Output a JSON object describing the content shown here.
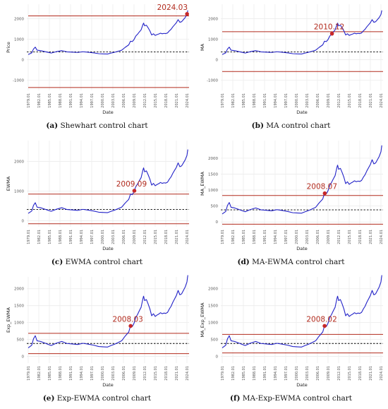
{
  "chart_data": [
    {
      "type": "line",
      "subfigure_label": "(a)",
      "caption": "Shewhart control chart",
      "xlabel": "Date",
      "ylabel": "Price",
      "ylim": [
        -1500,
        2700
      ],
      "yticks": [
        -1000,
        0,
        1000,
        2000
      ],
      "xticks": [
        "1979.01",
        "1982.01",
        "1985.01",
        "1988.01",
        "1991.01",
        "1994.01",
        "1997.01",
        "2000.01",
        "2003.01",
        "2006.01",
        "2009.01",
        "2012.01",
        "2015.01",
        "2018.01",
        "2021.01",
        "2024.01"
      ],
      "x": [
        1979.0,
        1980.0,
        1980.5,
        1981.0,
        1981.5,
        1982.5,
        1983.5,
        1984.5,
        1985.5,
        1987.0,
        1988.5,
        1990.0,
        1991.5,
        1993.0,
        1994.5,
        1996.0,
        1997.5,
        1999.0,
        2000.5,
        2001.5,
        2002.5,
        2003.5,
        2004.5,
        2005.5,
        2006.5,
        2007.5,
        2008.0,
        2008.5,
        2009.0,
        2009.5,
        2010.0,
        2010.5,
        2011.0,
        2011.5,
        2011.7,
        2012.0,
        2012.5,
        2013.0,
        2013.5,
        2014.0,
        2014.5,
        2015.0,
        2015.5,
        2016.0,
        2016.5,
        2017.0,
        2017.5,
        2018.0,
        2018.5,
        2019.0,
        2019.5,
        2020.0,
        2020.5,
        2021.0,
        2021.5,
        2022.0,
        2022.5,
        2023.0,
        2023.5,
        2024.0,
        2024.25
      ],
      "series": [
        {
          "values": [
            250,
            330,
            520,
            610,
            460,
            440,
            400,
            360,
            320,
            390,
            440,
            380,
            365,
            350,
            385,
            360,
            330,
            290,
            280,
            275,
            320,
            360,
            410,
            460,
            600,
            720,
            900,
            880,
            980,
            1150,
            1240,
            1350,
            1450,
            1700,
            1780,
            1650,
            1680,
            1550,
            1400,
            1200,
            1260,
            1180,
            1220,
            1250,
            1290,
            1260,
            1280,
            1270,
            1300,
            1400,
            1480,
            1600,
            1700,
            1800,
            1950,
            1820,
            1850,
            1950,
            2050,
            2200,
            2400
          ]
        }
      ],
      "center_line": 380,
      "control_limits": [
        2130,
        -1360
      ],
      "signal": {
        "x": 2024.03,
        "label": "2024.03"
      }
    },
    {
      "type": "line",
      "subfigure_label": "(b)",
      "caption": "MA control chart",
      "xlabel": "Date",
      "ylabel": "MA",
      "ylim": [
        -1500,
        2700
      ],
      "yticks": [
        -1000,
        0,
        1000,
        2000
      ],
      "xticks": [
        "1979.01",
        "1982.01",
        "1985.01",
        "1988.01",
        "1991.01",
        "1994.01",
        "1997.01",
        "2000.01",
        "2003.01",
        "2006.01",
        "2009.01",
        "2012.01",
        "2015.01",
        "2018.01",
        "2021.01",
        "2024.01"
      ],
      "x": [
        1979.0,
        1980.0,
        1980.5,
        1981.0,
        1981.5,
        1982.5,
        1983.5,
        1984.5,
        1985.5,
        1987.0,
        1988.5,
        1990.0,
        1991.5,
        1993.0,
        1994.5,
        1996.0,
        1997.5,
        1999.0,
        2000.5,
        2001.5,
        2002.5,
        2003.5,
        2004.5,
        2005.5,
        2006.5,
        2007.5,
        2008.0,
        2008.5,
        2009.0,
        2009.5,
        2010.0,
        2010.5,
        2011.0,
        2011.5,
        2011.7,
        2012.0,
        2012.5,
        2013.0,
        2013.5,
        2014.0,
        2014.5,
        2015.0,
        2015.5,
        2016.0,
        2016.5,
        2017.0,
        2017.5,
        2018.0,
        2018.5,
        2019.0,
        2019.5,
        2020.0,
        2020.5,
        2021.0,
        2021.5,
        2022.0,
        2022.5,
        2023.0,
        2023.5,
        2024.0,
        2024.25
      ],
      "series": [
        {
          "values": [
            250,
            330,
            520,
            610,
            460,
            440,
            400,
            360,
            320,
            390,
            440,
            380,
            365,
            350,
            385,
            360,
            330,
            290,
            280,
            275,
            320,
            360,
            410,
            460,
            600,
            720,
            900,
            880,
            980,
            1150,
            1240,
            1350,
            1450,
            1700,
            1780,
            1650,
            1680,
            1550,
            1400,
            1200,
            1260,
            1180,
            1220,
            1250,
            1290,
            1260,
            1280,
            1270,
            1300,
            1400,
            1480,
            1600,
            1700,
            1800,
            1950,
            1820,
            1850,
            1950,
            2050,
            2200,
            2400
          ]
        }
      ],
      "center_line": 380,
      "control_limits": [
        1360,
        -580
      ],
      "signal": {
        "x": 2010.12,
        "label": "2010.12"
      }
    },
    {
      "type": "line",
      "subfigure_label": "(c)",
      "caption": "EWMA control chart",
      "xlabel": "Date",
      "ylabel": "EWMA",
      "ylim": [
        -200,
        2700
      ],
      "yticks": [
        0,
        1000,
        2000
      ],
      "xticks": [
        "1979.01",
        "1982.01",
        "1985.01",
        "1988.01",
        "1991.01",
        "1994.01",
        "1997.01",
        "2000.01",
        "2003.01",
        "2006.01",
        "2009.01",
        "2012.01",
        "2015.01",
        "2018.01",
        "2021.01",
        "2024.01"
      ],
      "x": [
        1979.0,
        1980.0,
        1980.5,
        1981.0,
        1981.5,
        1982.5,
        1983.5,
        1984.5,
        1985.5,
        1987.0,
        1988.5,
        1990.0,
        1991.5,
        1993.0,
        1994.5,
        1996.0,
        1997.5,
        1999.0,
        2000.5,
        2001.5,
        2002.5,
        2003.5,
        2004.5,
        2005.5,
        2006.5,
        2007.5,
        2008.0,
        2008.5,
        2009.0,
        2009.5,
        2010.0,
        2010.5,
        2011.0,
        2011.5,
        2011.7,
        2012.0,
        2012.5,
        2013.0,
        2013.5,
        2014.0,
        2014.5,
        2015.0,
        2015.5,
        2016.0,
        2016.5,
        2017.0,
        2017.5,
        2018.0,
        2018.5,
        2019.0,
        2019.5,
        2020.0,
        2020.5,
        2021.0,
        2021.5,
        2022.0,
        2022.5,
        2023.0,
        2023.5,
        2024.0,
        2024.25
      ],
      "series": [
        {
          "values": [
            250,
            330,
            520,
            610,
            460,
            440,
            400,
            360,
            320,
            390,
            440,
            380,
            365,
            350,
            385,
            360,
            330,
            290,
            280,
            275,
            320,
            360,
            410,
            460,
            600,
            720,
            900,
            880,
            980,
            1150,
            1240,
            1350,
            1450,
            1700,
            1780,
            1650,
            1680,
            1550,
            1400,
            1200,
            1260,
            1180,
            1220,
            1250,
            1290,
            1260,
            1280,
            1270,
            1300,
            1400,
            1480,
            1600,
            1700,
            1800,
            1950,
            1820,
            1850,
            1950,
            2050,
            2200,
            2400
          ]
        }
      ],
      "center_line": 380,
      "control_limits": [
        900,
        -100
      ],
      "signal": {
        "x": 2009.09,
        "label": "2009.09"
      }
    },
    {
      "type": "line",
      "subfigure_label": "(d)",
      "caption": "MA-EWMA control chart",
      "xlabel": "Date",
      "ylabel": "MA_EWMA",
      "ylim": [
        -150,
        2550
      ],
      "yticks": [
        0,
        500,
        1000,
        1500,
        2000
      ],
      "xticks": [
        "1979.01",
        "1982.01",
        "1985.01",
        "1988.01",
        "1991.01",
        "1994.01",
        "1997.01",
        "2000.01",
        "2003.01",
        "2006.01",
        "2009.01",
        "2012.01",
        "2015.01",
        "2018.01",
        "2021.01",
        "2024.01"
      ],
      "x": [
        1979.0,
        1980.0,
        1980.5,
        1981.0,
        1981.5,
        1982.5,
        1983.5,
        1984.5,
        1985.5,
        1987.0,
        1988.5,
        1990.0,
        1991.5,
        1993.0,
        1994.5,
        1996.0,
        1997.5,
        1999.0,
        2000.5,
        2001.5,
        2002.5,
        2003.5,
        2004.5,
        2005.5,
        2006.5,
        2007.5,
        2008.0,
        2008.5,
        2009.0,
        2009.5,
        2010.0,
        2010.5,
        2011.0,
        2011.5,
        2011.7,
        2012.0,
        2012.5,
        2013.0,
        2013.5,
        2014.0,
        2014.5,
        2015.0,
        2015.5,
        2016.0,
        2016.5,
        2017.0,
        2017.5,
        2018.0,
        2018.5,
        2019.0,
        2019.5,
        2020.0,
        2020.5,
        2021.0,
        2021.5,
        2022.0,
        2022.5,
        2023.0,
        2023.5,
        2024.0,
        2024.25
      ],
      "series": [
        {
          "values": [
            250,
            330,
            520,
            610,
            460,
            440,
            400,
            360,
            320,
            390,
            440,
            380,
            365,
            350,
            385,
            360,
            330,
            290,
            280,
            275,
            320,
            360,
            410,
            460,
            600,
            720,
            900,
            880,
            980,
            1150,
            1240,
            1350,
            1450,
            1700,
            1780,
            1650,
            1680,
            1550,
            1400,
            1200,
            1260,
            1180,
            1220,
            1250,
            1290,
            1260,
            1280,
            1270,
            1300,
            1400,
            1480,
            1600,
            1700,
            1800,
            1950,
            1820,
            1850,
            1950,
            2050,
            2200,
            2400
          ]
        }
      ],
      "center_line": 380,
      "control_limits": [
        830,
        -70
      ],
      "signal": {
        "x": 2008.07,
        "label": "2008.07"
      }
    },
    {
      "type": "line",
      "subfigure_label": "(e)",
      "caption": "Exp-EWMA control chart",
      "xlabel": "Date",
      "ylabel": "Exp_EWMA",
      "ylim": [
        -200,
        2350
      ],
      "yticks": [
        0,
        500,
        1000,
        1500,
        2000
      ],
      "xticks": [
        "1979.01",
        "1982.01",
        "1985.01",
        "1988.01",
        "1991.01",
        "1994.01",
        "1997.01",
        "2000.01",
        "2003.01",
        "2006.01",
        "2009.01",
        "2012.01",
        "2015.01",
        "2018.01",
        "2021.01",
        "2024.01"
      ],
      "x": [
        1979.0,
        1980.0,
        1980.5,
        1981.0,
        1981.5,
        1982.5,
        1983.5,
        1984.5,
        1985.5,
        1987.0,
        1988.5,
        1990.0,
        1991.5,
        1993.0,
        1994.5,
        1996.0,
        1997.5,
        1999.0,
        2000.5,
        2001.5,
        2002.5,
        2003.5,
        2004.5,
        2005.5,
        2006.5,
        2007.5,
        2008.0,
        2008.5,
        2009.0,
        2009.5,
        2010.0,
        2010.5,
        2011.0,
        2011.5,
        2011.7,
        2012.0,
        2012.5,
        2013.0,
        2013.5,
        2014.0,
        2014.5,
        2015.0,
        2015.5,
        2016.0,
        2016.5,
        2017.0,
        2017.5,
        2018.0,
        2018.5,
        2019.0,
        2019.5,
        2020.0,
        2020.5,
        2021.0,
        2021.5,
        2022.0,
        2022.5,
        2023.0,
        2023.5,
        2024.0,
        2024.25
      ],
      "series": [
        {
          "values": [
            250,
            330,
            520,
            610,
            460,
            440,
            400,
            360,
            320,
            390,
            440,
            380,
            365,
            350,
            385,
            360,
            330,
            290,
            280,
            275,
            320,
            360,
            410,
            460,
            600,
            720,
            900,
            880,
            980,
            1150,
            1240,
            1350,
            1450,
            1700,
            1780,
            1650,
            1680,
            1550,
            1400,
            1200,
            1260,
            1180,
            1220,
            1250,
            1290,
            1260,
            1280,
            1270,
            1300,
            1400,
            1480,
            1600,
            1700,
            1800,
            1950,
            1820,
            1850,
            1950,
            2050,
            2200,
            2400
          ]
        }
      ],
      "center_line": 380,
      "control_limits": [
        680,
        80
      ],
      "signal": {
        "x": 2008.03,
        "label": "2008.03"
      }
    },
    {
      "type": "line",
      "subfigure_label": "(f)",
      "caption": "MA-Exp-EWMA control chart",
      "xlabel": "Date",
      "ylabel": "MA_Exp_EWMA",
      "ylim": [
        -200,
        2350
      ],
      "yticks": [
        0,
        500,
        1000,
        1500,
        2000
      ],
      "xticks": [
        "1979.01",
        "1982.01",
        "1985.01",
        "1988.01",
        "1991.01",
        "1994.01",
        "1997.01",
        "2000.01",
        "2003.01",
        "2006.01",
        "2009.01",
        "2012.01",
        "2015.01",
        "2018.01",
        "2021.01",
        "2024.01"
      ],
      "x": [
        1979.0,
        1980.0,
        1980.5,
        1981.0,
        1981.5,
        1982.5,
        1983.5,
        1984.5,
        1985.5,
        1987.0,
        1988.5,
        1990.0,
        1991.5,
        1993.0,
        1994.5,
        1996.0,
        1997.5,
        1999.0,
        2000.5,
        2001.5,
        2002.5,
        2003.5,
        2004.5,
        2005.5,
        2006.5,
        2007.5,
        2008.0,
        2008.5,
        2009.0,
        2009.5,
        2010.0,
        2010.5,
        2011.0,
        2011.5,
        2011.7,
        2012.0,
        2012.5,
        2013.0,
        2013.5,
        2014.0,
        2014.5,
        2015.0,
        2015.5,
        2016.0,
        2016.5,
        2017.0,
        2017.5,
        2018.0,
        2018.5,
        2019.0,
        2019.5,
        2020.0,
        2020.5,
        2021.0,
        2021.5,
        2022.0,
        2022.5,
        2023.0,
        2023.5,
        2024.0,
        2024.25
      ],
      "series": [
        {
          "values": [
            250,
            330,
            520,
            610,
            460,
            440,
            400,
            360,
            320,
            390,
            440,
            380,
            365,
            350,
            385,
            360,
            330,
            290,
            280,
            275,
            320,
            360,
            410,
            460,
            600,
            720,
            900,
            880,
            980,
            1150,
            1240,
            1350,
            1450,
            1700,
            1780,
            1650,
            1680,
            1550,
            1400,
            1200,
            1260,
            1180,
            1220,
            1250,
            1290,
            1260,
            1280,
            1270,
            1300,
            1400,
            1480,
            1600,
            1700,
            1800,
            1950,
            1820,
            1850,
            1950,
            2050,
            2200,
            2400
          ]
        }
      ],
      "center_line": 380,
      "control_limits": [
        650,
        100
      ],
      "signal": {
        "x": 2008.02,
        "label": "2008.02"
      }
    }
  ],
  "colors": {
    "series": "#2323c8",
    "control_limit": "#b22b1e",
    "signal_point": "#c62828",
    "signal_text": "#b22b1e",
    "center_line": "#000000",
    "grid": "#ececec"
  }
}
